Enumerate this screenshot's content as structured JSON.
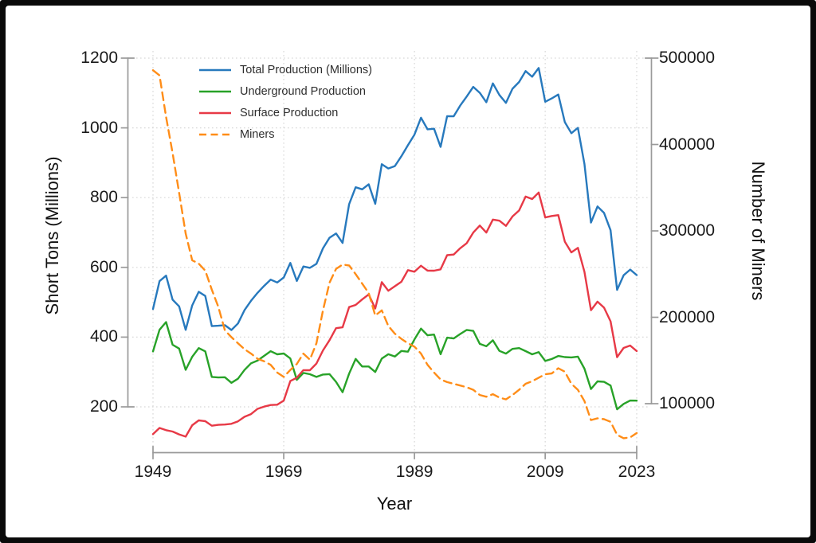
{
  "window": {
    "background": "#ffffff",
    "border_color": "#000000",
    "axis_color": "#9a9a9a",
    "grid_color": "#d7d7d7"
  },
  "chart_data": {
    "type": "line",
    "title": "",
    "grid": true,
    "legend_position": "top-left",
    "x_axis": {
      "label": "Year",
      "ticks": [
        1949,
        1969,
        1989,
        2009,
        2023
      ],
      "range": [
        1949,
        2023
      ]
    },
    "left_axis": {
      "label": "Short Tons (Millions)",
      "ticks": [
        1200,
        1000,
        800,
        600,
        400,
        200
      ],
      "range": [
        200,
        1200
      ]
    },
    "right_axis": {
      "label": "Number of Miners",
      "ticks": [
        500000,
        400000,
        300000,
        200000,
        100000
      ],
      "range": [
        100000,
        500000
      ]
    },
    "x": [
      1949,
      1950,
      1951,
      1952,
      1953,
      1954,
      1955,
      1956,
      1957,
      1958,
      1959,
      1960,
      1961,
      1962,
      1963,
      1964,
      1965,
      1966,
      1967,
      1968,
      1969,
      1970,
      1971,
      1972,
      1973,
      1974,
      1975,
      1976,
      1977,
      1978,
      1979,
      1980,
      1981,
      1982,
      1983,
      1984,
      1985,
      1986,
      1987,
      1988,
      1989,
      1990,
      1991,
      1992,
      1993,
      1994,
      1995,
      1996,
      1997,
      1998,
      1999,
      2000,
      2001,
      2002,
      2003,
      2004,
      2005,
      2006,
      2007,
      2008,
      2009,
      2010,
      2011,
      2012,
      2013,
      2014,
      2015,
      2016,
      2017,
      2018,
      2019,
      2020,
      2021,
      2022,
      2023
    ],
    "series": [
      {
        "name": "Total Production (Millions)",
        "axis": "left",
        "color": "#2779bd",
        "style": "solid",
        "values": [
          480.6,
          560.4,
          576.3,
          507.4,
          488.2,
          420.8,
          490.8,
          529.8,
          518,
          431.6,
          432.7,
          434.3,
          420.4,
          439,
          477.2,
          504.2,
          527,
          546.8,
          564.9,
          556.7,
          570.9,
          612.7,
          560.9,
          602.5,
          598.6,
          610,
          654.6,
          684.9,
          697.2,
          670.2,
          781.1,
          829.7,
          823.8,
          838.1,
          782.1,
          895.9,
          883.6,
          890.3,
          918.8,
          950.3,
          980.7,
          1029.1,
          996,
          997.5,
          945.4,
          1033.5,
          1033,
          1063.9,
          1089.9,
          1117.5,
          1100.4,
          1073.6,
          1127.7,
          1094.3,
          1071.8,
          1112.1,
          1131.5,
          1162.7,
          1146.6,
          1171.8,
          1074.9,
          1084.4,
          1095.6,
          1016.5,
          984.8,
          1000,
          896.9,
          728.4,
          774.6,
          756.2,
          706.3,
          535.4,
          577.4,
          593.7,
          577.9
        ]
      },
      {
        "name": "Underground Production",
        "axis": "left",
        "color": "#28a228",
        "style": "solid",
        "values": [
          358.9,
          421,
          443.1,
          378.1,
          367.2,
          306.2,
          343.5,
          368.5,
          359.2,
          285.8,
          284.3,
          284.9,
          269,
          280.5,
          305.8,
          325,
          332.7,
          346.1,
          359.6,
          350.6,
          352.9,
          338.8,
          277.4,
          297.2,
          293.5,
          285.8,
          292.8,
          293.8,
          271.6,
          242.1,
          295.1,
          337.5,
          315.8,
          315.8,
          300.1,
          338.4,
          350.8,
          344.4,
          360.2,
          358.3,
          393.3,
          424.5,
          405.3,
          407.2,
          351,
          398.5,
          396.2,
          409,
          420.6,
          417.7,
          380.6,
          373.7,
          390.8,
          360.5,
          352.8,
          366.2,
          368.6,
          359.8,
          350.7,
          357.1,
          331.8,
          337.2,
          345.9,
          342.8,
          341.8,
          344,
          309.5,
          251.2,
          273,
          271.7,
          261.1,
          193,
          208.5,
          218,
          217.9
        ]
      },
      {
        "name": "Surface Production",
        "axis": "left",
        "color": "#e73946",
        "style": "solid",
        "values": [
          121.7,
          139.4,
          133.2,
          129.3,
          121,
          114.6,
          147.3,
          161.3,
          158.8,
          145.8,
          148.4,
          149.4,
          151.4,
          158.5,
          171.4,
          179.2,
          194.3,
          200.7,
          205.3,
          206.1,
          218,
          273.9,
          283.5,
          305.3,
          305.1,
          324.2,
          361.8,
          391.1,
          425.6,
          428.1,
          486,
          492.2,
          508,
          522.3,
          482,
          557.5,
          532.8,
          545.9,
          558.6,
          592,
          587.4,
          604.5,
          590.7,
          590.3,
          594.4,
          635,
          636.7,
          654.9,
          669.3,
          699.8,
          719.8,
          699.8,
          736.9,
          733.8,
          719,
          745.9,
          762.9,
          802.9,
          795.9,
          814.7,
          743.1,
          747.2,
          749.7,
          673.7,
          643,
          656,
          587.4,
          477.2,
          501.6,
          484.5,
          445.2,
          342.4,
          368.9,
          375.7,
          360
        ]
      },
      {
        "name": "Miners",
        "axis": "right",
        "color": "#ff8d18",
        "style": "dashed",
        "values": [
          486000,
          480000,
          432000,
          390000,
          344000,
          297000,
          266000,
          262000,
          254000,
          232000,
          212000,
          185000,
          177000,
          170000,
          163000,
          158000,
          152000,
          149000,
          145000,
          136000,
          131000,
          139000,
          146000,
          158000,
          151000,
          170000,
          208000,
          240000,
          256000,
          261000,
          260000,
          250000,
          239000,
          228000,
          202000,
          208000,
          190000,
          181000,
          175000,
          170000,
          166000,
          158000,
          145000,
          136000,
          128000,
          125000,
          123000,
          121000,
          119000,
          116000,
          110000,
          108000,
          111000,
          107000,
          105000,
          110000,
          116000,
          123000,
          126000,
          130000,
          134000,
          135000,
          141000,
          137000,
          123000,
          116000,
          103000,
          81000,
          83000,
          82000,
          79000,
          64000,
          60000,
          61000,
          66000
        ]
      }
    ]
  }
}
